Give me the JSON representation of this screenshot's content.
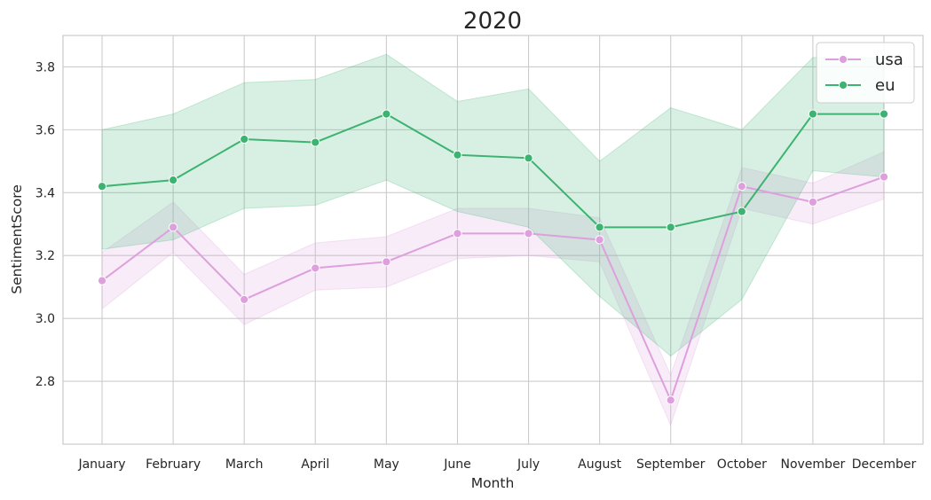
{
  "chart_data": {
    "type": "line",
    "title": "2020",
    "xlabel": "Month",
    "ylabel": "SentimentScore",
    "categories": [
      "January",
      "February",
      "March",
      "April",
      "May",
      "June",
      "July",
      "August",
      "September",
      "October",
      "November",
      "December"
    ],
    "ylim": [
      2.6,
      3.9
    ],
    "yticks": [
      2.8,
      3.0,
      3.2,
      3.4,
      3.6,
      3.8
    ],
    "yticks_labels": [
      "2.8",
      "3.0",
      "3.2",
      "3.4",
      "3.6",
      "3.8"
    ],
    "grid": true,
    "legend": "top-right",
    "series": [
      {
        "name": "usa",
        "color": "#dda0dd",
        "values": [
          3.12,
          3.29,
          3.06,
          3.16,
          3.18,
          3.27,
          3.27,
          3.25,
          2.74,
          3.42,
          3.37,
          3.45
        ],
        "lower": [
          3.03,
          3.21,
          2.98,
          3.09,
          3.1,
          3.19,
          3.2,
          3.18,
          2.66,
          3.35,
          3.3,
          3.38
        ],
        "upper": [
          3.21,
          3.37,
          3.14,
          3.24,
          3.26,
          3.35,
          3.35,
          3.32,
          2.82,
          3.48,
          3.43,
          3.53
        ]
      },
      {
        "name": "eu",
        "color": "#3cb371",
        "values": [
          3.42,
          3.44,
          3.57,
          3.56,
          3.65,
          3.52,
          3.51,
          3.29,
          3.29,
          3.34,
          3.65,
          3.65
        ],
        "lower": [
          3.22,
          3.25,
          3.35,
          3.36,
          3.44,
          3.34,
          3.29,
          3.07,
          2.88,
          3.06,
          3.47,
          3.45
        ],
        "upper": [
          3.6,
          3.65,
          3.75,
          3.76,
          3.84,
          3.69,
          3.73,
          3.5,
          3.67,
          3.6,
          3.83,
          3.83
        ]
      }
    ]
  }
}
